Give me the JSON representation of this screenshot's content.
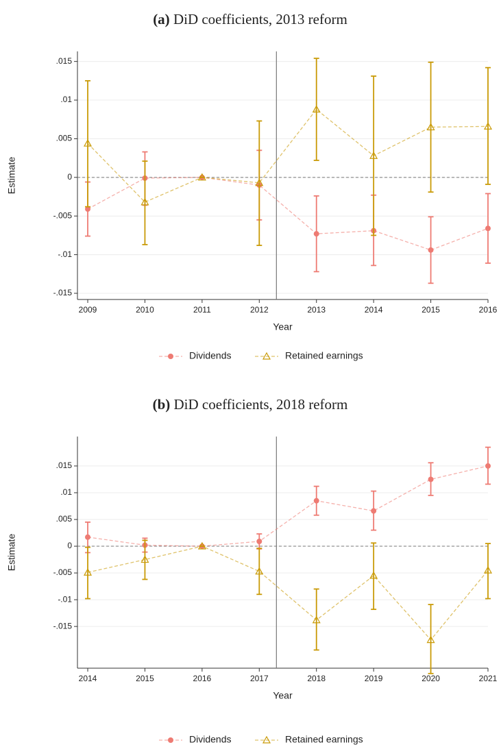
{
  "chart_data": [
    {
      "type": "line",
      "label": "(a)",
      "title": "DiD coefficients, 2013 reform",
      "x_label": "Year",
      "y_label": "Estimate",
      "x": [
        2009,
        2010,
        2011,
        2012,
        2013,
        2014,
        2015,
        2016
      ],
      "xlim": [
        2008.82,
        2016
      ],
      "xticks": [
        2009,
        2010,
        2011,
        2012,
        2013,
        2014,
        2015,
        2016
      ],
      "ylim": [
        -0.0158,
        0.0163
      ],
      "yticks": [
        {
          "value": -0.015,
          "label": "-.015"
        },
        {
          "value": -0.01,
          "label": "-.01"
        },
        {
          "value": -0.005,
          "label": "-.005"
        },
        0,
        {
          "value": 0.005,
          "label": ".005"
        },
        {
          "value": 0.01,
          "label": ".01"
        },
        {
          "value": 0.015,
          "label": ".015"
        }
      ],
      "grid": true,
      "hline": 0,
      "vline": 2012.3,
      "series": [
        {
          "name": "Dividends",
          "color": "#ee7b73",
          "marker": "circle",
          "values": [
            -0.0041,
            -0.0001,
            0,
            -0.001,
            -0.0073,
            -0.0069,
            -0.0094,
            -0.0066
          ],
          "ci_low": [
            -0.0076,
            -0.0036,
            0,
            -0.0055,
            -0.0122,
            -0.0114,
            -0.0137,
            -0.0111
          ],
          "ci_high": [
            -0.0006,
            0.0033,
            0,
            0.0035,
            -0.0024,
            -0.0023,
            -0.0051,
            -0.0021
          ]
        },
        {
          "name": "Retained earnings",
          "color": "#c99a06",
          "marker": "triangle",
          "values": [
            0.0044,
            -0.0032,
            0,
            -0.0007,
            0.0088,
            0.0028,
            0.0065,
            0.0066
          ],
          "ci_low": [
            -0.0038,
            -0.0087,
            0,
            -0.0088,
            0.0022,
            -0.0075,
            -0.0019,
            -0.0009
          ],
          "ci_high": [
            0.0125,
            0.0021,
            0,
            0.0073,
            0.0154,
            0.0131,
            0.0149,
            0.0142
          ]
        }
      ]
    },
    {
      "type": "line",
      "label": "(b)",
      "title": "DiD coefficients, 2018 reform",
      "x_label": "Year",
      "y_label": "Estimate",
      "x": [
        2014,
        2015,
        2016,
        2017,
        2018,
        2019,
        2020,
        2021
      ],
      "xlim": [
        2013.82,
        2021
      ],
      "xticks": [
        2014,
        2015,
        2016,
        2017,
        2018,
        2019,
        2020,
        2021
      ],
      "ylim": [
        -0.0228,
        0.0205
      ],
      "yticks": [
        {
          "value": -0.015,
          "label": "-.015"
        },
        {
          "value": -0.01,
          "label": "-.01"
        },
        {
          "value": -0.005,
          "label": "-.005"
        },
        0,
        {
          "value": 0.005,
          "label": ".005"
        },
        {
          "value": 0.01,
          "label": ".01"
        },
        {
          "value": 0.015,
          "label": ".015"
        }
      ],
      "grid": true,
      "hline": 0,
      "vline": 2017.3,
      "series": [
        {
          "name": "Dividends",
          "color": "#ee7b73",
          "marker": "circle",
          "values": [
            0.0017,
            0.0002,
            0,
            0.0009,
            0.0085,
            0.0066,
            0.0125,
            0.015
          ],
          "ci_low": [
            -0.0012,
            -0.0011,
            0,
            -0.0005,
            0.0058,
            0.003,
            0.0095,
            0.0116
          ],
          "ci_high": [
            0.0045,
            0.0015,
            0,
            0.0023,
            0.0112,
            0.0103,
            0.0156,
            0.0185
          ]
        },
        {
          "name": "Retained earnings",
          "color": "#c99a06",
          "marker": "triangle",
          "values": [
            -0.0049,
            -0.0025,
            0,
            -0.0047,
            -0.0138,
            -0.0055,
            -0.0175,
            -0.0045
          ],
          "ci_low": [
            -0.0098,
            -0.0062,
            0,
            -0.009,
            -0.0194,
            -0.0118,
            -0.0238,
            -0.0098
          ],
          "ci_high": [
            -0.0002,
            0.0011,
            0,
            -0.0004,
            -0.008,
            0.0006,
            -0.0109,
            0.0005
          ]
        }
      ]
    }
  ]
}
